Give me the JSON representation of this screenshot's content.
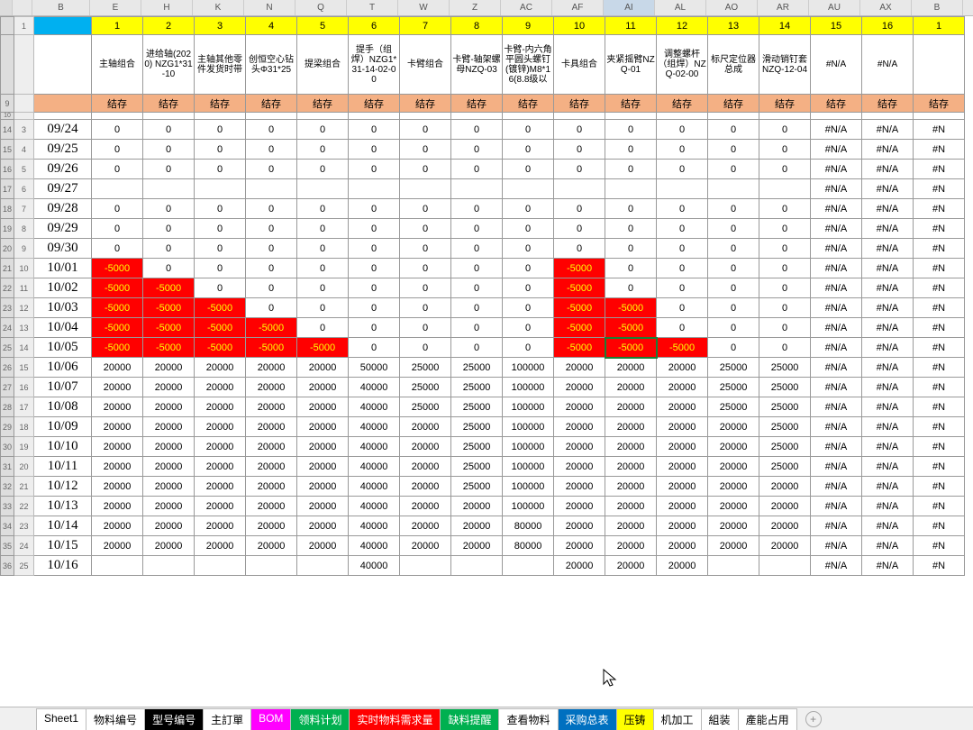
{
  "columnLetters": [
    "A",
    "B",
    "E",
    "H",
    "K",
    "N",
    "Q",
    "T",
    "W",
    "Z",
    "AC",
    "AF",
    "AI",
    "AL",
    "AO",
    "AR",
    "AU",
    "AX",
    "B"
  ],
  "selectedColLetter": "AI",
  "topNumbers": [
    "1",
    "2",
    "3",
    "4",
    "5",
    "6",
    "7",
    "8",
    "9",
    "10",
    "11",
    "12",
    "13",
    "14",
    "15",
    "16",
    "1"
  ],
  "itemHeaders": [
    "主轴组合",
    "进给轴(2020) NZG1*31-10",
    "主轴其他零件发货时带",
    "创恒空心钻头Φ31*25",
    "提梁组合",
    "提手（组焊）NZG1*31-14-02-00",
    "卡臂组合",
    "卡臂-轴架螺母NZQ-03",
    "卡臂-内六角平圆头螺钉(镀锌)M8*16(8.8级以",
    "卡具组合",
    "夹紧摇臂NZQ-01",
    "调整螺杆（组焊）NZQ-02-00",
    "标尺定位器总成",
    "滑动销钉套NZQ-12-04",
    "#N/A",
    "#N/A",
    ""
  ],
  "stockLabel": "结存",
  "rowMetaNums": [
    "1",
    "",
    "9",
    "10",
    "3",
    "4",
    "5",
    "6",
    "7",
    "8",
    "9",
    "10",
    "11",
    "12",
    "13",
    "14",
    "15",
    "16",
    "17",
    "18",
    "19",
    "20",
    "21",
    "22",
    "23",
    "24",
    "25"
  ],
  "sideNums": [
    "",
    "",
    "",
    "",
    "14",
    "15",
    "16",
    "17",
    "18",
    "19",
    "20",
    "21",
    "22",
    "23",
    "24",
    "25",
    "26",
    "27",
    "28",
    "29",
    "30",
    "31",
    "32",
    "33",
    "34",
    "35",
    "36"
  ],
  "dates": [
    "09/24",
    "09/25",
    "09/26",
    "09/27",
    "09/28",
    "09/29",
    "09/30",
    "10/01",
    "10/02",
    "10/03",
    "10/04",
    "10/05",
    "10/06",
    "10/07",
    "10/08",
    "10/09",
    "10/10",
    "10/11",
    "10/12",
    "10/13",
    "10/14",
    "10/15",
    "10/16"
  ],
  "data": [
    [
      "0",
      "0",
      "0",
      "0",
      "0",
      "0",
      "0",
      "0",
      "0",
      "0",
      "0",
      "0",
      "0",
      "0",
      "#N/A",
      "#N/A",
      "#N"
    ],
    [
      "0",
      "0",
      "0",
      "0",
      "0",
      "0",
      "0",
      "0",
      "0",
      "0",
      "0",
      "0",
      "0",
      "0",
      "#N/A",
      "#N/A",
      "#N"
    ],
    [
      "0",
      "0",
      "0",
      "0",
      "0",
      "0",
      "0",
      "0",
      "0",
      "0",
      "0",
      "0",
      "0",
      "0",
      "#N/A",
      "#N/A",
      "#N"
    ],
    [
      "",
      "",
      "",
      "",
      "",
      "",
      "",
      "",
      "",
      "",
      "",
      "",
      "",
      "",
      "#N/A",
      "#N/A",
      "#N"
    ],
    [
      "0",
      "0",
      "0",
      "0",
      "0",
      "0",
      "0",
      "0",
      "0",
      "0",
      "0",
      "0",
      "0",
      "0",
      "#N/A",
      "#N/A",
      "#N"
    ],
    [
      "0",
      "0",
      "0",
      "0",
      "0",
      "0",
      "0",
      "0",
      "0",
      "0",
      "0",
      "0",
      "0",
      "0",
      "#N/A",
      "#N/A",
      "#N"
    ],
    [
      "0",
      "0",
      "0",
      "0",
      "0",
      "0",
      "0",
      "0",
      "0",
      "0",
      "0",
      "0",
      "0",
      "0",
      "#N/A",
      "#N/A",
      "#N"
    ],
    [
      "-5000",
      "0",
      "0",
      "0",
      "0",
      "0",
      "0",
      "0",
      "0",
      "-5000",
      "0",
      "0",
      "0",
      "0",
      "#N/A",
      "#N/A",
      "#N"
    ],
    [
      "-5000",
      "-5000",
      "0",
      "0",
      "0",
      "0",
      "0",
      "0",
      "0",
      "-5000",
      "0",
      "0",
      "0",
      "0",
      "#N/A",
      "#N/A",
      "#N"
    ],
    [
      "-5000",
      "-5000",
      "-5000",
      "0",
      "0",
      "0",
      "0",
      "0",
      "0",
      "-5000",
      "-5000",
      "0",
      "0",
      "0",
      "#N/A",
      "#N/A",
      "#N"
    ],
    [
      "-5000",
      "-5000",
      "-5000",
      "-5000",
      "0",
      "0",
      "0",
      "0",
      "0",
      "-5000",
      "-5000",
      "0",
      "0",
      "0",
      "#N/A",
      "#N/A",
      "#N"
    ],
    [
      "-5000",
      "-5000",
      "-5000",
      "-5000",
      "-5000",
      "0",
      "0",
      "0",
      "0",
      "-5000",
      "-5000",
      "-5000",
      "0",
      "0",
      "#N/A",
      "#N/A",
      "#N"
    ],
    [
      "20000",
      "20000",
      "20000",
      "20000",
      "20000",
      "50000",
      "25000",
      "25000",
      "100000",
      "20000",
      "20000",
      "20000",
      "25000",
      "25000",
      "#N/A",
      "#N/A",
      "#N"
    ],
    [
      "20000",
      "20000",
      "20000",
      "20000",
      "20000",
      "40000",
      "25000",
      "25000",
      "100000",
      "20000",
      "20000",
      "20000",
      "25000",
      "25000",
      "#N/A",
      "#N/A",
      "#N"
    ],
    [
      "20000",
      "20000",
      "20000",
      "20000",
      "20000",
      "40000",
      "25000",
      "25000",
      "100000",
      "20000",
      "20000",
      "20000",
      "25000",
      "25000",
      "#N/A",
      "#N/A",
      "#N"
    ],
    [
      "20000",
      "20000",
      "20000",
      "20000",
      "20000",
      "40000",
      "20000",
      "25000",
      "100000",
      "20000",
      "20000",
      "20000",
      "20000",
      "25000",
      "#N/A",
      "#N/A",
      "#N"
    ],
    [
      "20000",
      "20000",
      "20000",
      "20000",
      "20000",
      "40000",
      "20000",
      "25000",
      "100000",
      "20000",
      "20000",
      "20000",
      "20000",
      "25000",
      "#N/A",
      "#N/A",
      "#N"
    ],
    [
      "20000",
      "20000",
      "20000",
      "20000",
      "20000",
      "40000",
      "20000",
      "25000",
      "100000",
      "20000",
      "20000",
      "20000",
      "20000",
      "25000",
      "#N/A",
      "#N/A",
      "#N"
    ],
    [
      "20000",
      "20000",
      "20000",
      "20000",
      "20000",
      "40000",
      "20000",
      "25000",
      "100000",
      "20000",
      "20000",
      "20000",
      "20000",
      "20000",
      "#N/A",
      "#N/A",
      "#N"
    ],
    [
      "20000",
      "20000",
      "20000",
      "20000",
      "20000",
      "40000",
      "20000",
      "20000",
      "100000",
      "20000",
      "20000",
      "20000",
      "20000",
      "20000",
      "#N/A",
      "#N/A",
      "#N"
    ],
    [
      "20000",
      "20000",
      "20000",
      "20000",
      "20000",
      "40000",
      "20000",
      "20000",
      "80000",
      "20000",
      "20000",
      "20000",
      "20000",
      "20000",
      "#N/A",
      "#N/A",
      "#N"
    ],
    [
      "20000",
      "20000",
      "20000",
      "20000",
      "20000",
      "40000",
      "20000",
      "20000",
      "80000",
      "20000",
      "20000",
      "20000",
      "20000",
      "20000",
      "#N/A",
      "#N/A",
      "#N"
    ],
    [
      "",
      "",
      "",
      "",
      "",
      "40000",
      "",
      "",
      "",
      "20000",
      "20000",
      "20000",
      "",
      "",
      "#N/A",
      "#N/A",
      "#N"
    ]
  ],
  "redCells": {
    "7": [
      0,
      9
    ],
    "8": [
      0,
      1,
      9
    ],
    "9": [
      0,
      1,
      2,
      9,
      10
    ],
    "10": [
      0,
      1,
      2,
      3,
      9,
      10
    ],
    "11": [
      0,
      1,
      2,
      3,
      4,
      9,
      10,
      11
    ]
  },
  "selectedCell": {
    "row": 11,
    "col": 10
  },
  "tabs": [
    {
      "label": "Sheet1",
      "cls": ""
    },
    {
      "label": "物料编号",
      "cls": ""
    },
    {
      "label": "型号编号",
      "cls": "c-black"
    },
    {
      "label": "主訂單",
      "cls": ""
    },
    {
      "label": "BOM",
      "cls": "c-magenta"
    },
    {
      "label": "领料计划",
      "cls": "c-green"
    },
    {
      "label": "实时物料需求量",
      "cls": "c-red"
    },
    {
      "label": "缺料提醒",
      "cls": "c-green"
    },
    {
      "label": "查看物料",
      "cls": ""
    },
    {
      "label": "采购总表",
      "cls": "c-blue"
    },
    {
      "label": "压铸",
      "cls": "c-yellow"
    },
    {
      "label": "机加工",
      "cls": ""
    },
    {
      "label": "組装",
      "cls": ""
    },
    {
      "label": "產能占用",
      "cls": ""
    }
  ]
}
